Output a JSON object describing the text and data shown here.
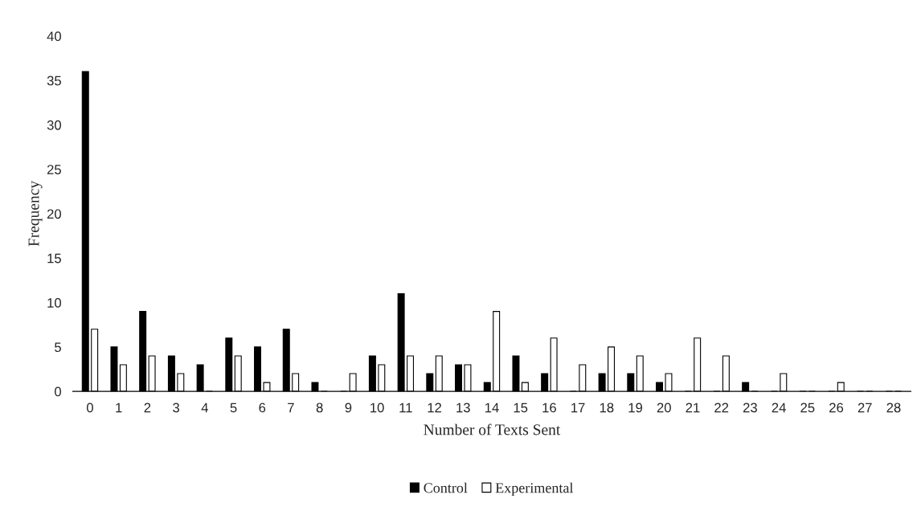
{
  "chart_data": {
    "type": "bar",
    "xlabel": "Number of Texts Sent",
    "ylabel": "Frequency",
    "categories": [
      "0",
      "1",
      "2",
      "3",
      "4",
      "5",
      "6",
      "7",
      "8",
      "9",
      "10",
      "11",
      "12",
      "13",
      "14",
      "15",
      "16",
      "17",
      "18",
      "19",
      "20",
      "21",
      "22",
      "23",
      "24",
      "25",
      "26",
      "27",
      "28"
    ],
    "series": [
      {
        "name": "Control",
        "color": "#000000",
        "values": [
          36,
          5,
          9,
          4,
          3,
          6,
          5,
          7,
          1,
          0,
          4,
          11,
          2,
          3,
          1,
          4,
          2,
          0,
          2,
          2,
          1,
          0,
          0,
          1,
          0,
          0,
          0,
          0,
          0
        ]
      },
      {
        "name": "Experimental",
        "color": "#ffffff",
        "values": [
          7,
          3,
          4,
          2,
          0,
          4,
          1,
          2,
          0,
          2,
          3,
          4,
          4,
          3,
          9,
          1,
          6,
          3,
          5,
          4,
          2,
          6,
          4,
          0,
          2,
          0,
          1,
          0,
          0
        ]
      }
    ],
    "ylim": [
      0,
      40
    ],
    "yticks": [
      0,
      5,
      10,
      15,
      20,
      25,
      30,
      35,
      40
    ],
    "grid": false,
    "legend": "bottom"
  }
}
